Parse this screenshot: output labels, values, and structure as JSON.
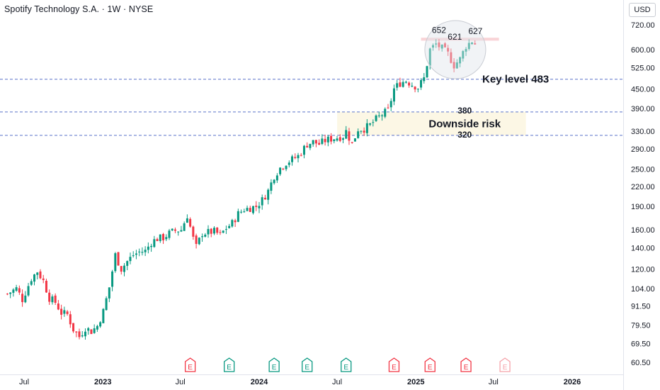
{
  "header": {
    "title": "Spotify Technology S.A. · 1W · NYSE",
    "currency": "USD"
  },
  "colors": {
    "up": "#089981",
    "down": "#f23645",
    "axis_text": "#131722",
    "level_line": "#5b74c9",
    "earnings_future": "#f5a3aa"
  },
  "chart_data": {
    "type": "candlestick",
    "title": "Spotify Technology S.A. · 1W · NYSE",
    "y_scale": "log",
    "ylim": [
      56,
      790
    ],
    "y_ticks": [
      "720.00",
      "600.00",
      "525.00",
      "450.00",
      "390.00",
      "330.00",
      "290.00",
      "250.00",
      "220.00",
      "190.00",
      "160.00",
      "140.00",
      "120.00",
      "104.00",
      "91.50",
      "79.50",
      "69.50",
      "60.50"
    ],
    "x_ticks": [
      "Jul",
      "2023",
      "Jul",
      "2024",
      "Jul",
      "2025",
      "Jul",
      "2026"
    ],
    "x_tick_dates": [
      "2022-07-01",
      "2023-01-01",
      "2023-07-01",
      "2024-01-01",
      "2024-07-01",
      "2025-01-01",
      "2025-07-01",
      "2026-01-01"
    ],
    "series": [
      {
        "name": "",
        "close_anchors": [
          [
            "2022-05-23",
            100
          ],
          [
            "2022-06-13",
            104
          ],
          [
            "2022-06-27",
            96
          ],
          [
            "2022-07-18",
            112
          ],
          [
            "2022-08-01",
            118
          ],
          [
            "2022-08-15",
            110
          ],
          [
            "2022-08-29",
            97
          ],
          [
            "2022-09-12",
            94
          ],
          [
            "2022-09-26",
            87
          ],
          [
            "2022-10-10",
            86
          ],
          [
            "2022-10-24",
            77
          ],
          [
            "2022-11-07",
            73
          ],
          [
            "2022-11-21",
            78
          ],
          [
            "2022-12-05",
            76
          ],
          [
            "2022-12-19",
            79
          ],
          [
            "2023-01-02",
            88
          ],
          [
            "2023-01-16",
            105
          ],
          [
            "2023-01-30",
            133
          ],
          [
            "2023-02-13",
            120
          ],
          [
            "2023-02-27",
            127
          ],
          [
            "2023-03-13",
            133
          ],
          [
            "2023-03-27",
            136
          ],
          [
            "2023-04-10",
            137
          ],
          [
            "2023-04-24",
            146
          ],
          [
            "2023-05-08",
            150
          ],
          [
            "2023-05-22",
            151
          ],
          [
            "2023-06-05",
            156
          ],
          [
            "2023-06-19",
            159
          ],
          [
            "2023-07-03",
            160
          ],
          [
            "2023-07-17",
            178
          ],
          [
            "2023-07-31",
            150
          ],
          [
            "2023-08-07",
            141
          ],
          [
            "2023-08-21",
            156
          ],
          [
            "2023-09-04",
            157
          ],
          [
            "2023-09-18",
            158
          ],
          [
            "2023-10-02",
            154
          ],
          [
            "2023-10-16",
            162
          ],
          [
            "2023-10-30",
            168
          ],
          [
            "2023-11-13",
            180
          ],
          [
            "2023-11-27",
            186
          ],
          [
            "2023-12-11",
            188
          ],
          [
            "2023-12-25",
            190
          ],
          [
            "2024-01-08",
            199
          ],
          [
            "2024-01-22",
            213
          ],
          [
            "2024-02-05",
            238
          ],
          [
            "2024-02-19",
            252
          ],
          [
            "2024-03-04",
            262
          ],
          [
            "2024-03-18",
            268
          ],
          [
            "2024-04-01",
            275
          ],
          [
            "2024-04-22",
            300
          ],
          [
            "2024-05-06",
            305
          ],
          [
            "2024-05-20",
            300
          ],
          [
            "2024-06-03",
            308
          ],
          [
            "2024-06-17",
            312
          ],
          [
            "2024-07-01",
            315
          ],
          [
            "2024-07-15",
            318
          ],
          [
            "2024-07-22",
            330
          ],
          [
            "2024-08-05",
            300
          ],
          [
            "2024-08-19",
            335
          ],
          [
            "2024-09-02",
            336
          ],
          [
            "2024-09-16",
            345
          ],
          [
            "2024-09-30",
            360
          ],
          [
            "2024-10-14",
            373
          ],
          [
            "2024-10-28",
            384
          ],
          [
            "2024-11-11",
            450
          ],
          [
            "2024-11-25",
            470
          ],
          [
            "2024-12-09",
            478
          ],
          [
            "2024-12-23",
            465
          ],
          [
            "2025-01-06",
            455
          ],
          [
            "2025-01-20",
            486
          ],
          [
            "2025-02-03",
            600
          ],
          [
            "2025-02-17",
            625
          ],
          [
            "2025-03-03",
            605
          ],
          [
            "2025-03-17",
            582
          ],
          [
            "2025-03-31",
            535
          ],
          [
            "2025-04-14",
            560
          ],
          [
            "2025-04-28",
            617
          ],
          [
            "2025-05-12",
            640
          ],
          [
            "2025-05-19",
            627
          ]
        ]
      }
    ],
    "annotations": {
      "highs": [
        "652",
        "621",
        "627"
      ],
      "key_level": {
        "label": "Key level 483",
        "value": 483
      },
      "zone": {
        "label": "Downside risk",
        "top_label": "380",
        "bottom_label": "320",
        "top": 380,
        "bottom": 320
      },
      "resistance_band": {
        "low": 641,
        "high": 655
      }
    },
    "level_lines": [
      483,
      380,
      320
    ],
    "earnings_markers": [
      {
        "label": "E",
        "date": "2023-07-24",
        "result": "miss",
        "upcoming": false
      },
      {
        "label": "E",
        "date": "2023-10-23",
        "result": "beat",
        "upcoming": false
      },
      {
        "label": "E",
        "date": "2024-02-05",
        "result": "beat",
        "upcoming": false
      },
      {
        "label": "E",
        "date": "2024-04-22",
        "result": "beat",
        "upcoming": false
      },
      {
        "label": "E",
        "date": "2024-07-22",
        "result": "beat",
        "upcoming": false
      },
      {
        "label": "E",
        "date": "2024-11-11",
        "result": "miss",
        "upcoming": false
      },
      {
        "label": "E",
        "date": "2025-02-03",
        "result": "miss",
        "upcoming": false
      },
      {
        "label": "E",
        "date": "2025-04-28",
        "result": "miss",
        "upcoming": false
      },
      {
        "label": "E",
        "date": "2025-07-28",
        "result": "",
        "upcoming": true
      }
    ],
    "grid": false,
    "legend": "none"
  }
}
